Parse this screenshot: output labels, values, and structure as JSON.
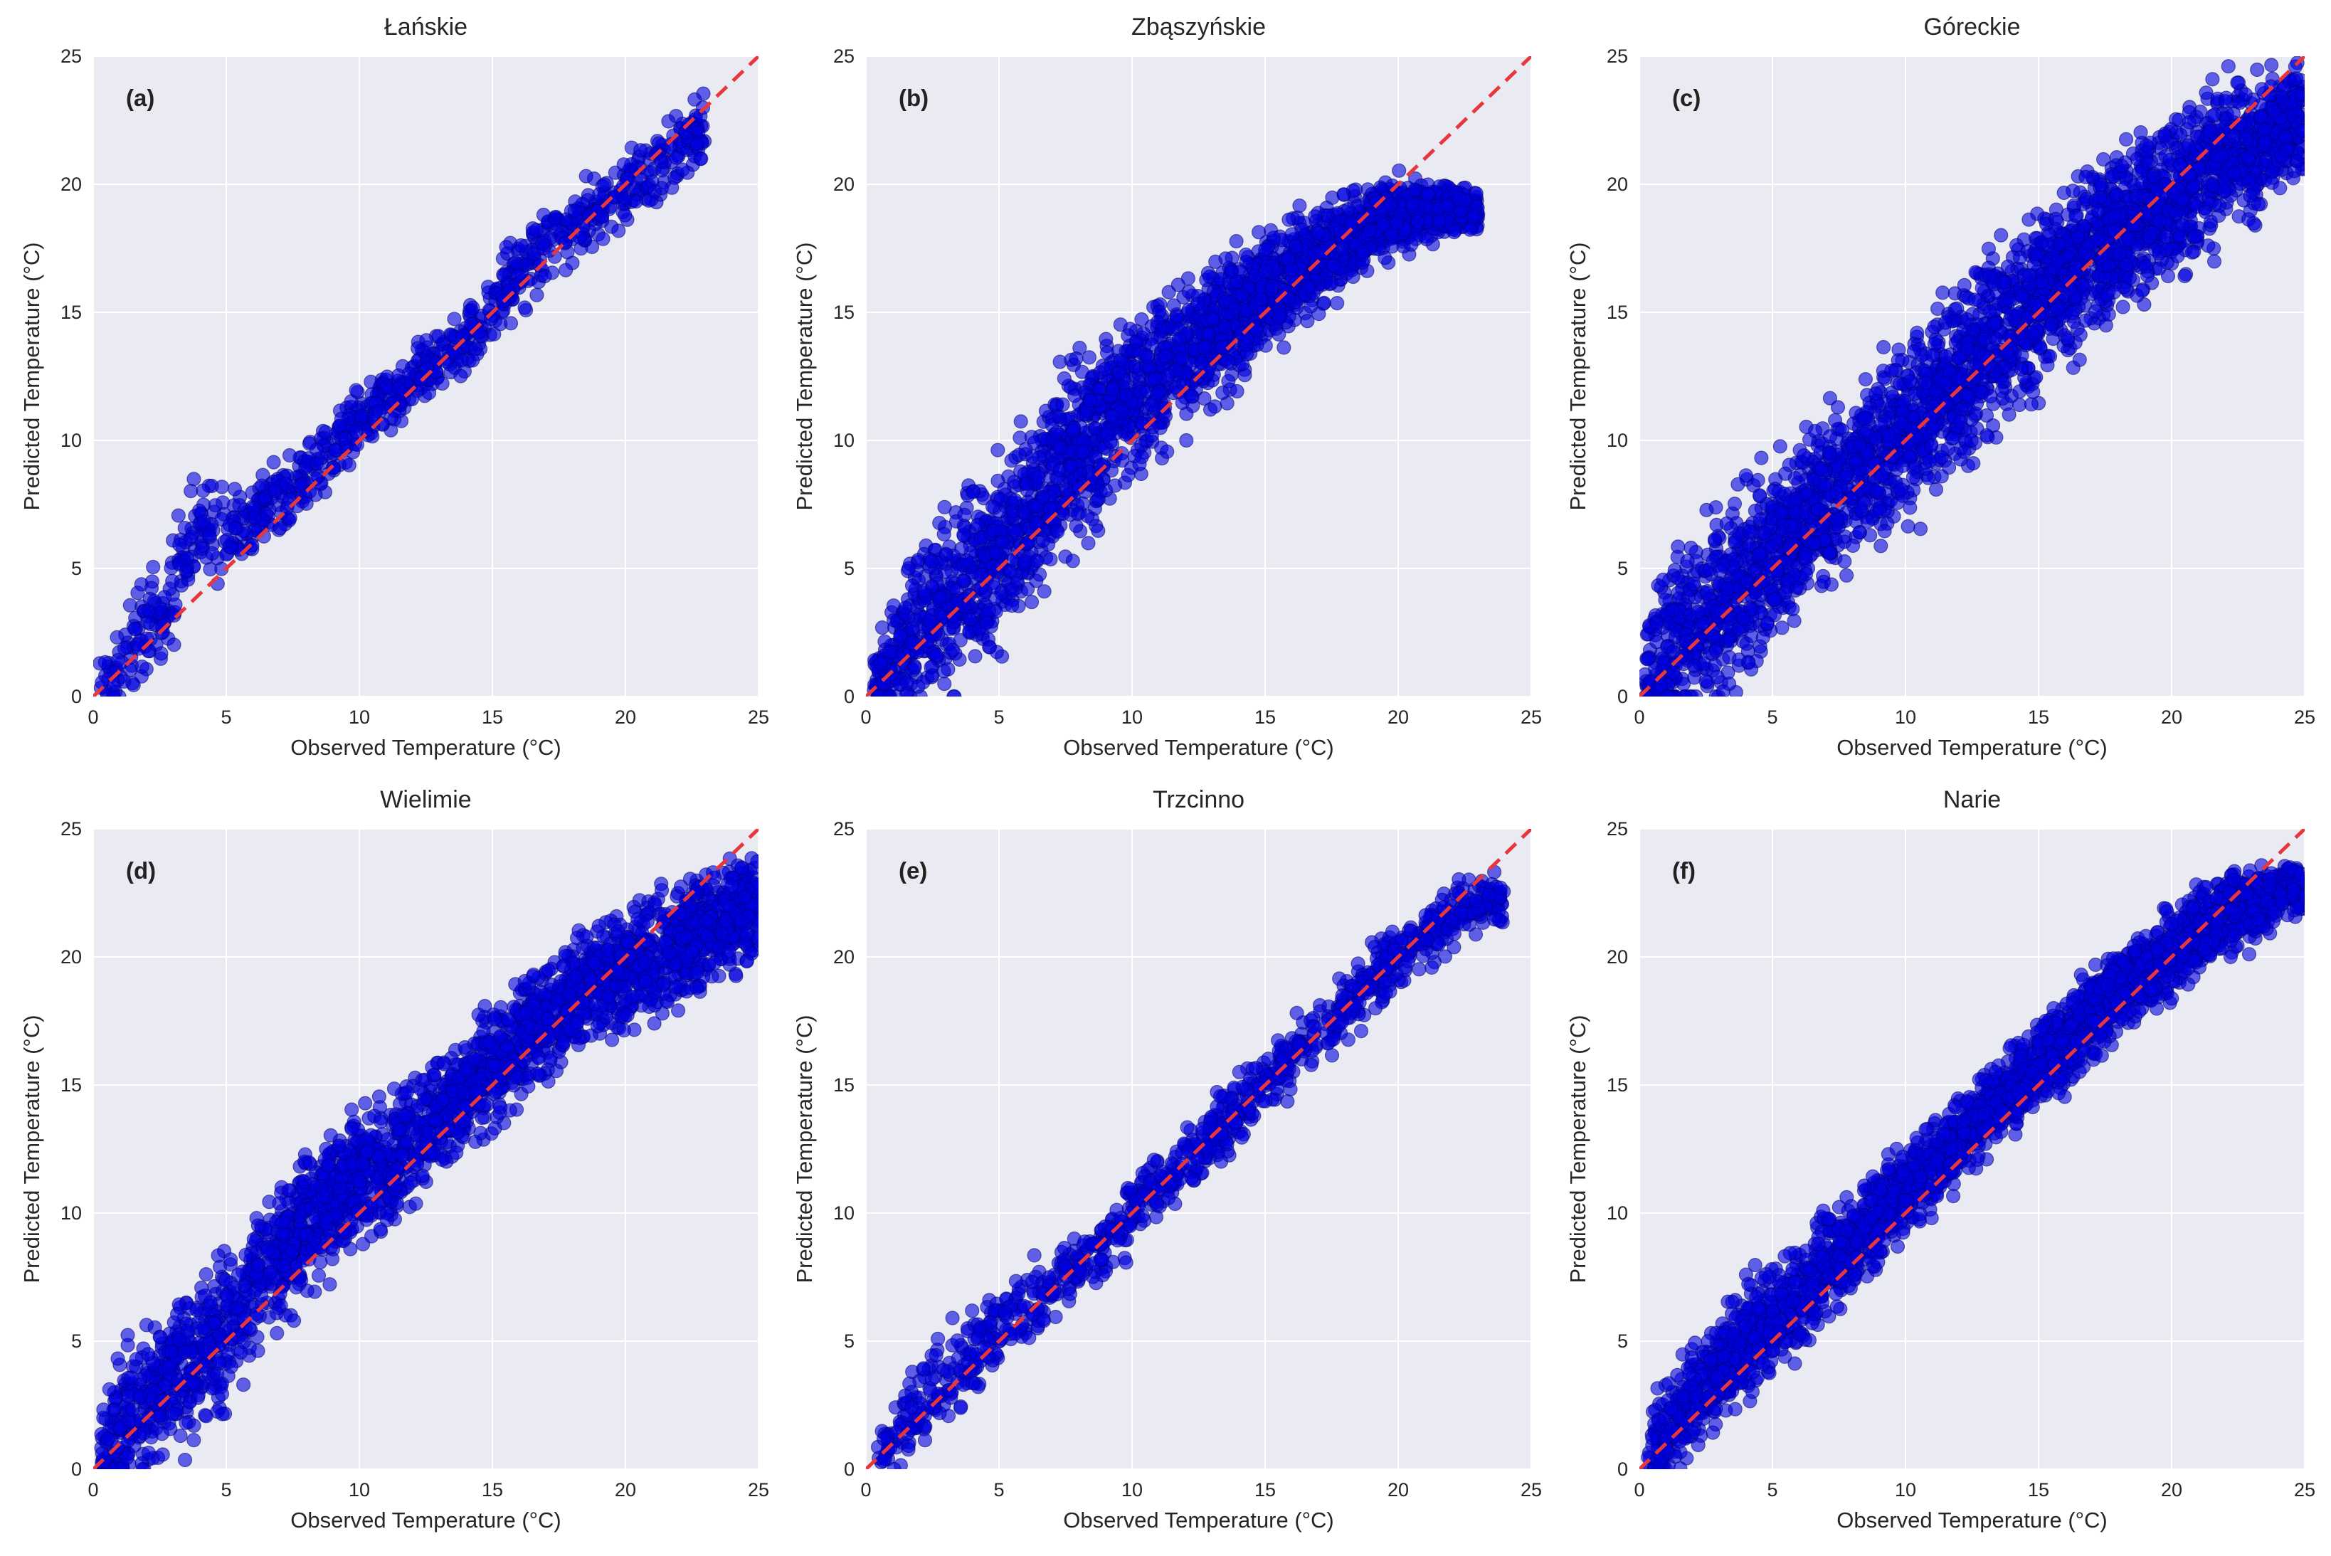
{
  "chart_data": [
    {
      "type": "scatter",
      "title": "Łańskie",
      "panel_label": "(a)",
      "xlabel": "Observed Temperature (°C)",
      "ylabel": "Predicted Temperature (°C)",
      "xlim": [
        0,
        25
      ],
      "ylim": [
        0,
        25
      ],
      "xticks": [
        0,
        5,
        10,
        15,
        20,
        25
      ],
      "yticks": [
        0,
        5,
        10,
        15,
        20,
        25
      ],
      "grid": true,
      "reference_line": {
        "from": [
          0,
          0
        ],
        "to": [
          25,
          25
        ]
      },
      "points": {
        "count": 900,
        "x": [
          0.2,
          0.5,
          1.0,
          1.5,
          2.0,
          2.5,
          3.0,
          3.5,
          4.0,
          5.0,
          6.0,
          7.0,
          8.0,
          9.0,
          10.0,
          11.0,
          12.0,
          13.0,
          14.0,
          15.0,
          16.0,
          17.0,
          18.0,
          19.0,
          20.0,
          21.0,
          22.0,
          23.0
        ],
        "y": [
          0.2,
          0.8,
          1.0,
          2.0,
          2.8,
          3.2,
          4.0,
          5.5,
          6.5,
          6.2,
          7.0,
          8.0,
          8.8,
          9.8,
          10.5,
          11.5,
          12.5,
          13.2,
          13.8,
          15.0,
          16.5,
          17.8,
          18.2,
          19.0,
          19.8,
          20.6,
          21.5,
          22.2
        ],
        "spread": [
          0.6,
          0.8,
          1.0,
          1.2,
          1.3,
          1.4,
          1.5,
          1.4,
          1.3,
          1.0,
          0.9,
          0.9,
          0.9,
          0.8,
          0.8,
          0.8,
          0.8,
          0.8,
          0.9,
          1.0,
          1.0,
          1.0,
          1.0,
          1.0,
          1.0,
          1.0,
          1.0,
          1.0
        ]
      }
    },
    {
      "type": "scatter",
      "title": "Zbąszyńskie",
      "panel_label": "(b)",
      "xlabel": "Observed Temperature (°C)",
      "ylabel": "Predicted Temperature (°C)",
      "xlim": [
        0,
        25
      ],
      "ylim": [
        0,
        25
      ],
      "xticks": [
        0,
        5,
        10,
        15,
        20,
        25
      ],
      "yticks": [
        0,
        5,
        10,
        15,
        20,
        25
      ],
      "grid": true,
      "reference_line": {
        "from": [
          0,
          0
        ],
        "to": [
          25,
          25
        ]
      },
      "points": {
        "count": 2600,
        "x": [
          0.3,
          1.0,
          2.0,
          3.0,
          4.0,
          5.0,
          6.0,
          7.0,
          8.0,
          9.0,
          10.0,
          11.0,
          12.0,
          13.0,
          14.0,
          15.0,
          16.0,
          17.0,
          18.0,
          19.0,
          20.0,
          21.0,
          22.0,
          23.0
        ],
        "y": [
          0.5,
          1.5,
          2.8,
          3.5,
          4.5,
          5.8,
          7.0,
          8.5,
          9.5,
          10.5,
          11.8,
          12.5,
          13.5,
          14.2,
          15.0,
          15.8,
          16.5,
          17.2,
          17.8,
          18.5,
          18.8,
          19.0,
          19.0,
          19.0
        ],
        "spread": [
          1.0,
          1.5,
          2.0,
          2.2,
          2.4,
          2.5,
          2.5,
          2.4,
          2.3,
          2.2,
          2.1,
          2.0,
          1.9,
          1.8,
          1.6,
          1.5,
          1.4,
          1.3,
          1.2,
          1.1,
          1.0,
          0.8,
          0.6,
          0.5
        ]
      }
    },
    {
      "type": "scatter",
      "title": "Góreckie",
      "panel_label": "(c)",
      "xlabel": "Observed Temperature (°C)",
      "ylabel": "Predicted Temperature (°C)",
      "xlim": [
        0,
        25
      ],
      "ylim": [
        0,
        25
      ],
      "xticks": [
        0,
        5,
        10,
        15,
        20,
        25
      ],
      "yticks": [
        0,
        5,
        10,
        15,
        20,
        25
      ],
      "grid": true,
      "reference_line": {
        "from": [
          0,
          0
        ],
        "to": [
          25,
          25
        ]
      },
      "points": {
        "count": 3000,
        "x": [
          0.2,
          1.0,
          2.0,
          3.0,
          4.0,
          5.0,
          6.0,
          7.0,
          8.0,
          9.0,
          10.0,
          11.0,
          12.0,
          13.0,
          14.0,
          15.0,
          16.0,
          17.0,
          18.0,
          19.0,
          20.0,
          21.0,
          22.0,
          23.0,
          24.0,
          25.0
        ],
        "y": [
          0.5,
          1.5,
          2.5,
          3.5,
          4.5,
          5.5,
          6.5,
          7.5,
          8.5,
          9.5,
          10.5,
          11.5,
          12.5,
          13.5,
          14.5,
          15.5,
          16.5,
          17.2,
          18.0,
          18.8,
          19.5,
          20.2,
          21.0,
          21.5,
          22.0,
          22.5
        ],
        "spread": [
          2.0,
          2.5,
          2.5,
          2.5,
          2.4,
          2.3,
          2.2,
          2.2,
          2.2,
          2.2,
          2.2,
          2.3,
          2.3,
          2.3,
          2.3,
          2.2,
          2.2,
          2.1,
          2.0,
          2.0,
          2.0,
          2.0,
          2.0,
          1.8,
          1.5,
          1.5
        ]
      }
    },
    {
      "type": "scatter",
      "title": "Wielimie",
      "panel_label": "(d)",
      "xlabel": "Observed Temperature (°C)",
      "ylabel": "Predicted Temperature (°C)",
      "xlim": [
        0,
        25
      ],
      "ylim": [
        0,
        25
      ],
      "xticks": [
        0,
        5,
        10,
        15,
        20,
        25
      ],
      "yticks": [
        0,
        5,
        10,
        15,
        20,
        25
      ],
      "grid": true,
      "reference_line": {
        "from": [
          0,
          0
        ],
        "to": [
          25,
          25
        ]
      },
      "points": {
        "count": 2600,
        "x": [
          0.3,
          1.0,
          2.0,
          3.0,
          4.0,
          5.0,
          6.0,
          7.0,
          8.0,
          9.0,
          10.0,
          11.0,
          12.0,
          13.0,
          14.0,
          15.0,
          16.0,
          17.0,
          18.0,
          19.0,
          20.0,
          21.0,
          22.0,
          23.0,
          24.0,
          25.0
        ],
        "y": [
          0.5,
          1.8,
          2.8,
          3.5,
          4.5,
          5.5,
          7.0,
          8.5,
          9.5,
          10.5,
          11.5,
          12.0,
          13.0,
          14.0,
          14.8,
          15.8,
          16.8,
          17.5,
          18.5,
          19.0,
          19.5,
          20.0,
          20.5,
          21.0,
          21.5,
          22.0
        ],
        "spread": [
          1.2,
          1.6,
          1.9,
          2.0,
          2.0,
          2.0,
          1.9,
          1.8,
          1.7,
          1.6,
          1.6,
          1.6,
          1.5,
          1.5,
          1.5,
          1.5,
          1.5,
          1.5,
          1.5,
          1.5,
          1.5,
          1.5,
          1.5,
          1.5,
          1.4,
          1.3
        ]
      }
    },
    {
      "type": "scatter",
      "title": "Trzcinno",
      "panel_label": "(e)",
      "xlabel": "Observed Temperature (°C)",
      "ylabel": "Predicted Temperature (°C)",
      "xlim": [
        0,
        25
      ],
      "ylim": [
        0,
        25
      ],
      "xticks": [
        0,
        5,
        10,
        15,
        20,
        25
      ],
      "yticks": [
        0,
        5,
        10,
        15,
        20,
        25
      ],
      "grid": true,
      "reference_line": {
        "from": [
          0,
          0
        ],
        "to": [
          25,
          25
        ]
      },
      "points": {
        "count": 1000,
        "x": [
          0.3,
          1.0,
          2.0,
          3.0,
          4.0,
          5.0,
          6.0,
          7.0,
          8.0,
          9.0,
          10.0,
          11.0,
          12.0,
          13.0,
          14.0,
          15.0,
          16.0,
          17.0,
          18.0,
          19.0,
          20.0,
          21.0,
          22.0,
          23.0,
          24.0
        ],
        "y": [
          0.5,
          1.2,
          2.5,
          3.5,
          4.5,
          5.5,
          6.5,
          7.0,
          8.0,
          9.0,
          10.0,
          11.0,
          12.0,
          13.0,
          14.0,
          15.0,
          16.0,
          17.0,
          18.0,
          19.0,
          20.0,
          20.8,
          21.5,
          22.0,
          22.3
        ],
        "spread": [
          1.0,
          1.2,
          1.2,
          1.2,
          1.1,
          1.0,
          0.9,
          0.9,
          0.9,
          0.9,
          0.9,
          0.9,
          0.9,
          0.9,
          0.9,
          0.9,
          0.9,
          0.9,
          0.9,
          0.9,
          0.9,
          0.9,
          0.8,
          0.7,
          0.6
        ]
      }
    },
    {
      "type": "scatter",
      "title": "Narie",
      "panel_label": "(f)",
      "xlabel": "Observed Temperature (°C)",
      "ylabel": "Predicted Temperature (°C)",
      "xlim": [
        0,
        25
      ],
      "ylim": [
        0,
        25
      ],
      "xticks": [
        0,
        5,
        10,
        15,
        20,
        25
      ],
      "yticks": [
        0,
        5,
        10,
        15,
        20,
        25
      ],
      "grid": true,
      "reference_line": {
        "from": [
          0,
          0
        ],
        "to": [
          25,
          25
        ]
      },
      "points": {
        "count": 2600,
        "x": [
          0.3,
          1.0,
          2.0,
          3.0,
          4.0,
          5.0,
          6.0,
          7.0,
          8.0,
          9.0,
          10.0,
          11.0,
          12.0,
          13.0,
          14.0,
          15.0,
          16.0,
          17.0,
          18.0,
          19.0,
          20.0,
          21.0,
          22.0,
          23.0,
          24.0,
          25.0
        ],
        "y": [
          0.5,
          1.5,
          2.8,
          3.8,
          5.0,
          5.8,
          6.8,
          7.8,
          8.8,
          9.8,
          10.8,
          11.8,
          12.8,
          13.8,
          14.8,
          15.8,
          16.8,
          17.8,
          18.8,
          19.5,
          20.2,
          21.0,
          21.5,
          22.0,
          22.5,
          22.7
        ],
        "spread": [
          1.0,
          1.3,
          1.4,
          1.5,
          1.5,
          1.5,
          1.4,
          1.3,
          1.2,
          1.2,
          1.2,
          1.2,
          1.1,
          1.1,
          1.1,
          1.1,
          1.1,
          1.1,
          1.1,
          1.1,
          1.1,
          1.1,
          1.1,
          1.0,
          0.8,
          0.5
        ]
      }
    }
  ],
  "style": {
    "face_color": "#eaeaf2",
    "grid_color": "#ffffff",
    "point_fill": "#0000e0",
    "point_stroke": "#000070",
    "reference_color": "#e8363d",
    "text_color": "#262626"
  }
}
